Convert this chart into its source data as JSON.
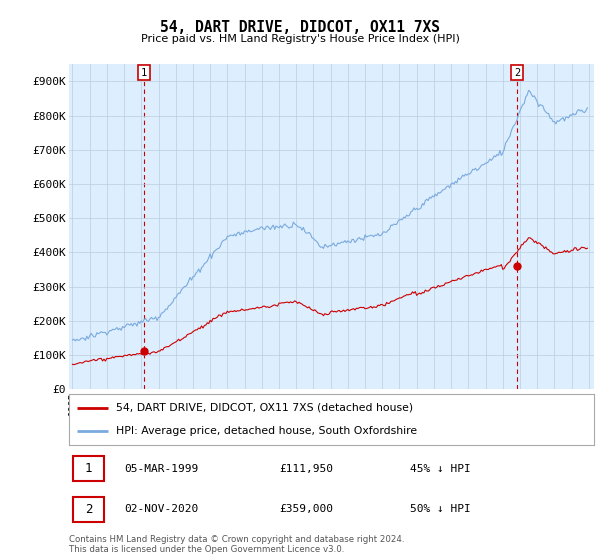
{
  "title": "54, DART DRIVE, DIDCOT, OX11 7XS",
  "subtitle": "Price paid vs. HM Land Registry's House Price Index (HPI)",
  "ylabel_values": [
    "£0",
    "£100K",
    "£200K",
    "£300K",
    "£400K",
    "£500K",
    "£600K",
    "£700K",
    "£800K",
    "£900K"
  ],
  "ylim": [
    0,
    950000
  ],
  "yticks": [
    0,
    100000,
    200000,
    300000,
    400000,
    500000,
    600000,
    700000,
    800000,
    900000
  ],
  "purchase1_year": 1999.18,
  "purchase1_price": 111950,
  "purchase2_year": 2020.84,
  "purchase2_price": 359000,
  "legend_line1": "54, DART DRIVE, DIDCOT, OX11 7XS (detached house)",
  "legend_line2": "HPI: Average price, detached house, South Oxfordshire",
  "row1_date": "05-MAR-1999",
  "row1_price": "£111,950",
  "row1_hpi": "45% ↓ HPI",
  "row2_date": "02-NOV-2020",
  "row2_price": "£359,000",
  "row2_hpi": "50% ↓ HPI",
  "footer": "Contains HM Land Registry data © Crown copyright and database right 2024.\nThis data is licensed under the Open Government Licence v3.0.",
  "line_color_red": "#cc0000",
  "line_color_blue": "#7aaadd",
  "background_color": "#ffffff",
  "chart_bg_color": "#ddeeff",
  "grid_color": "#bbccdd"
}
